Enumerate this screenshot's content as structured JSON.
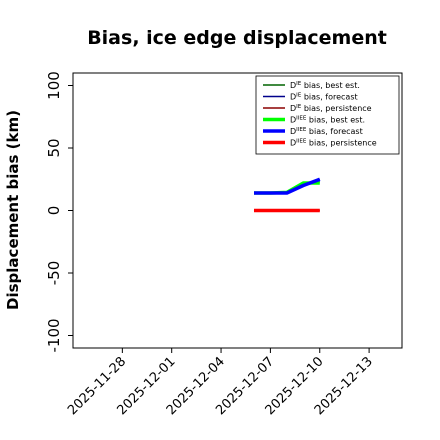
{
  "chart_data": {
    "type": "line",
    "title": "Bias, ice edge displacement",
    "xlabel": "",
    "ylabel": "Displacement bias (km)",
    "ylim": [
      -110,
      110
    ],
    "xlim": [
      "2025-11-25",
      "2025-12-15"
    ],
    "grid": false,
    "legend_position": "top-right",
    "yticks": [
      "-100",
      "-50",
      "0",
      "50",
      "100"
    ],
    "xticks": [
      {
        "label": "2025-11-28",
        "date": "2025-11-28",
        "color": "#000000"
      },
      {
        "label": "2025-12-01",
        "date": "2025-12-01",
        "color": "#000000"
      },
      {
        "label": "2025-12-04",
        "date": "2025-12-04",
        "color": "#228B22"
      },
      {
        "label": "2025-12-07",
        "date": "2025-12-07",
        "color": "#000000"
      },
      {
        "label": "2025-12-10",
        "date": "2025-12-10",
        "color": "#000000"
      },
      {
        "label": "2025-12-13",
        "date": "2025-12-13",
        "color": "#000000"
      }
    ],
    "series": [
      {
        "name": "D$^{IE}$ bias, best est.",
        "color": "#006400",
        "width": 1.5,
        "x": [
          "2025-12-06",
          "2025-12-07",
          "2025-12-08",
          "2025-12-09",
          "2025-12-10"
        ],
        "values": [
          14,
          14,
          14.5,
          21,
          23
        ]
      },
      {
        "name": "D$^{IE}$ bias, forecast",
        "color": "#00008B",
        "width": 1.5,
        "x": [
          "2025-12-06",
          "2025-12-07",
          "2025-12-08",
          "2025-12-09",
          "2025-12-10"
        ],
        "values": [
          14,
          14,
          14,
          20,
          25
        ]
      },
      {
        "name": "D$^{IE}$ bias, persistence",
        "color": "#8B0000",
        "width": 1.5,
        "x": [
          "2025-12-06",
          "2025-12-07",
          "2025-12-08",
          "2025-12-09",
          "2025-12-10"
        ],
        "values": [
          0,
          0,
          0,
          0,
          0
        ]
      },
      {
        "name": "D$^{IIEE}$ bias, best est.",
        "color": "#00FF00",
        "width": 3.5,
        "x": [
          "2025-12-06",
          "2025-12-07",
          "2025-12-08",
          "2025-12-09",
          "2025-12-10"
        ],
        "values": [
          14,
          14,
          14.5,
          22,
          22
        ]
      },
      {
        "name": "D$^{IIEE}$ bias, forecast",
        "color": "#0000FF",
        "width": 3.5,
        "x": [
          "2025-12-06",
          "2025-12-07",
          "2025-12-08",
          "2025-12-09",
          "2025-12-10"
        ],
        "values": [
          14,
          14,
          14,
          20,
          25
        ]
      },
      {
        "name": "D$^{IIEE}$ bias, persistence",
        "color": "#FF0000",
        "width": 3.5,
        "x": [
          "2025-12-06",
          "2025-12-07",
          "2025-12-08",
          "2025-12-09",
          "2025-12-10"
        ],
        "values": [
          0,
          0,
          0,
          0,
          0
        ]
      }
    ],
    "zero_line": {
      "color": "#808080",
      "x": [
        "2025-12-06",
        "2025-12-10"
      ],
      "value": 0
    }
  }
}
